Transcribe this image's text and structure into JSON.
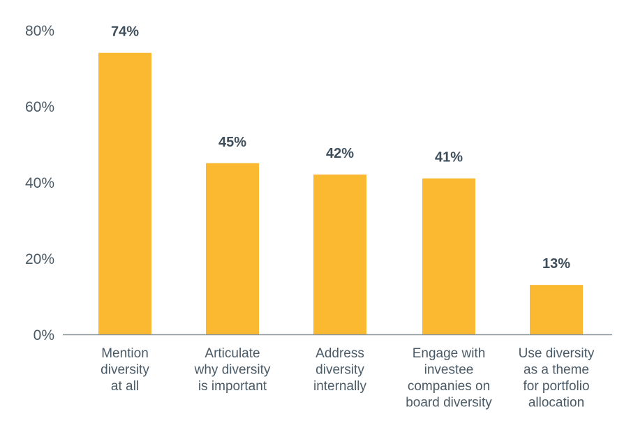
{
  "chart_data": {
    "type": "bar",
    "title": "",
    "xlabel": "",
    "ylabel": "",
    "ylim": [
      0,
      80
    ],
    "yticks": [
      "0%",
      "20%",
      "40%",
      "60%",
      "80%"
    ],
    "ytick_values": [
      0,
      20,
      40,
      60,
      80
    ],
    "grid": false,
    "categories": [
      [
        "Mention",
        "diversity",
        "at all"
      ],
      [
        "Articulate",
        "why diversity",
        "is important"
      ],
      [
        "Address",
        "diversity",
        "internally"
      ],
      [
        "Engage with",
        "investee",
        "companies on",
        "board diversity"
      ],
      [
        "Use diversity",
        "as a theme",
        "for portfolio",
        "allocation"
      ]
    ],
    "values": [
      74,
      45,
      42,
      41,
      13
    ],
    "data_labels": [
      "74%",
      "45%",
      "42%",
      "41%",
      "13%"
    ],
    "colors": {
      "bar": "#FBB831",
      "axis": "#8a949b",
      "label": "#3e4e5a"
    }
  }
}
